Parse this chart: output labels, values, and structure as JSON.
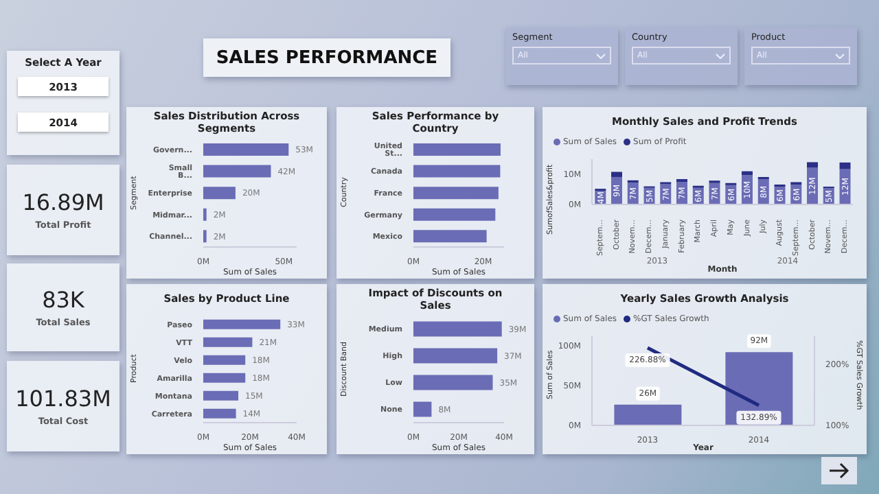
{
  "chart_data": [
    {
      "type": "other",
      "title": "SALES PERFORMANCE"
    },
    {
      "type": "other",
      "title": "Segment",
      "annotations": [
        "All"
      ]
    },
    {
      "type": "other",
      "title": "Country",
      "annotations": [
        "All"
      ]
    },
    {
      "type": "other",
      "title": "Product",
      "annotations": [
        "All"
      ]
    },
    {
      "type": "other",
      "title": "Select A Year",
      "annotations": [
        "2013",
        "2014"
      ]
    },
    {
      "type": "other",
      "title": "Total Profit",
      "annotations": [
        "16.89M"
      ]
    },
    {
      "type": "bar",
      "orientation": "horizontal",
      "title": "Sales Distribution Across Segments",
      "xlabel": "Sum of Sales",
      "ylabel": "Segment",
      "categories": [
        "Govern...",
        "Small B...",
        "Enterprise",
        "Midmar...",
        "Channel..."
      ],
      "values": [
        53,
        42,
        20,
        2,
        2
      ],
      "value_labels": [
        "53M",
        "42M",
        "20M",
        "2M",
        "2M"
      ],
      "color": "#6a6cb5",
      "xlim": [
        0,
        58
      ],
      "xticks": [
        {
          "value": 0,
          "label": "0M"
        },
        {
          "value": 50,
          "label": "50M"
        }
      ]
    },
    {
      "type": "bar",
      "orientation": "horizontal",
      "title": "Sales Performance by Country",
      "xlabel": "Sum of Sales",
      "ylabel": "Country",
      "categories": [
        "United St...",
        "Canada",
        "France",
        "Germany",
        "Mexico"
      ],
      "values": [
        25.0,
        24.9,
        24.4,
        23.5,
        21.0
      ],
      "color": "#6a6cb5",
      "xlim": [
        0,
        26
      ],
      "xticks": [
        {
          "value": 0,
          "label": "0M"
        },
        {
          "value": 20,
          "label": "20M"
        }
      ]
    },
    {
      "type": "bar",
      "stacked": true,
      "title": "Monthly Sales and Profit Trends",
      "xlabel": "Month",
      "ylabel": "SumofSales&profit",
      "legend": "top left",
      "categories": [
        "Septem...",
        "October",
        "Novem...",
        "Decem...",
        "January",
        "February",
        "March",
        "April",
        "May",
        "June",
        "July",
        "August",
        "Septem...",
        "October",
        "Novem...",
        "Decem..."
      ],
      "series": [
        {
          "name": "Sum of  Sales",
          "color": "#6a6cb5",
          "values": [
            4.5,
            9.1,
            7.2,
            5.5,
            6.7,
            7.5,
            5.5,
            7.1,
            6.4,
            9.7,
            8.3,
            5.9,
            6.5,
            12.2,
            5.4,
            11.8
          ],
          "value_labels": [
            "4M",
            "9M",
            "7M",
            "5M",
            "7M",
            "7M",
            "6M",
            "7M",
            "6M",
            "10M",
            "8M",
            "6M",
            "6M",
            "12M",
            "5M",
            "12M"
          ]
        },
        {
          "name": "Sum of Profit",
          "color": "#2b2f86",
          "values": [
            0.7,
            1.7,
            0.8,
            0.5,
            0.7,
            0.9,
            0.7,
            0.8,
            0.7,
            1.3,
            0.8,
            0.7,
            0.9,
            1.8,
            0.5,
            2.1
          ]
        }
      ],
      "ylim": [
        0,
        15
      ],
      "yticks": [
        {
          "value": 0,
          "label": "0M"
        },
        {
          "value": 10,
          "label": "10M"
        }
      ],
      "annotations": [
        "2013",
        "2014"
      ]
    },
    {
      "type": "other",
      "title": "Total Sales",
      "annotations": [
        "83K"
      ]
    },
    {
      "type": "bar",
      "orientation": "horizontal",
      "title": "Sales by Product Line",
      "xlabel": "Sum of Sales",
      "ylabel": "Product",
      "categories": [
        "Paseo",
        "VTT",
        "Velo",
        "Amarilla",
        "Montana",
        "Carretera"
      ],
      "values": [
        33,
        21,
        18,
        18,
        15,
        14
      ],
      "value_labels": [
        "33M",
        "21M",
        "18M",
        "18M",
        "15M",
        "14M"
      ],
      "color": "#6a6cb5",
      "xlim": [
        0,
        40
      ],
      "xticks": [
        {
          "value": 0,
          "label": "0M"
        },
        {
          "value": 20,
          "label": "20M"
        },
        {
          "value": 40,
          "label": "40M"
        }
      ]
    },
    {
      "type": "bar",
      "orientation": "horizontal",
      "title": "Impact of Discounts on Sales",
      "xlabel": "Sum of Sales",
      "ylabel": "Discount Band",
      "categories": [
        "Medium",
        "High",
        "Low",
        "None"
      ],
      "values": [
        39,
        37,
        35,
        8
      ],
      "value_labels": [
        "39M",
        "37M",
        "35M",
        "8M"
      ],
      "color": "#6a6cb5",
      "xlim": [
        0,
        40
      ],
      "xticks": [
        {
          "value": 0,
          "label": "0M"
        },
        {
          "value": 20,
          "label": "20M"
        },
        {
          "value": 40,
          "label": "40M"
        }
      ]
    },
    {
      "type": "bar",
      "title": "Yearly Sales Growth Analysis",
      "xlabel": "Year",
      "ylabel": "Sum of Sales",
      "y2label": "%GT Sales Growth",
      "legend": "top left",
      "categories": [
        "2013",
        "2014"
      ],
      "series": [
        {
          "name": "Sum of  Sales",
          "color": "#6a6cb5",
          "values": [
            26,
            92
          ],
          "value_labels": [
            "26M",
            "92M"
          ]
        },
        {
          "name": "%GT Sales Growth",
          "type": "line",
          "axis": "y2",
          "color": "#1f2a80",
          "values": [
            226.88,
            132.89
          ],
          "value_labels": [
            "226.88%",
            "132.89%"
          ]
        }
      ],
      "ylim": [
        0,
        112
      ],
      "yticks": [
        {
          "value": 0,
          "label": "0M"
        },
        {
          "value": 50,
          "label": "50M"
        },
        {
          "value": 100,
          "label": "100M"
        }
      ],
      "y2lim": [
        100,
        246
      ],
      "y2ticks": [
        {
          "value": 100,
          "label": "100%"
        },
        {
          "value": 200,
          "label": "200%"
        }
      ]
    },
    {
      "type": "other",
      "title": "Total Cost",
      "annotations": [
        "101.83M"
      ]
    }
  ]
}
